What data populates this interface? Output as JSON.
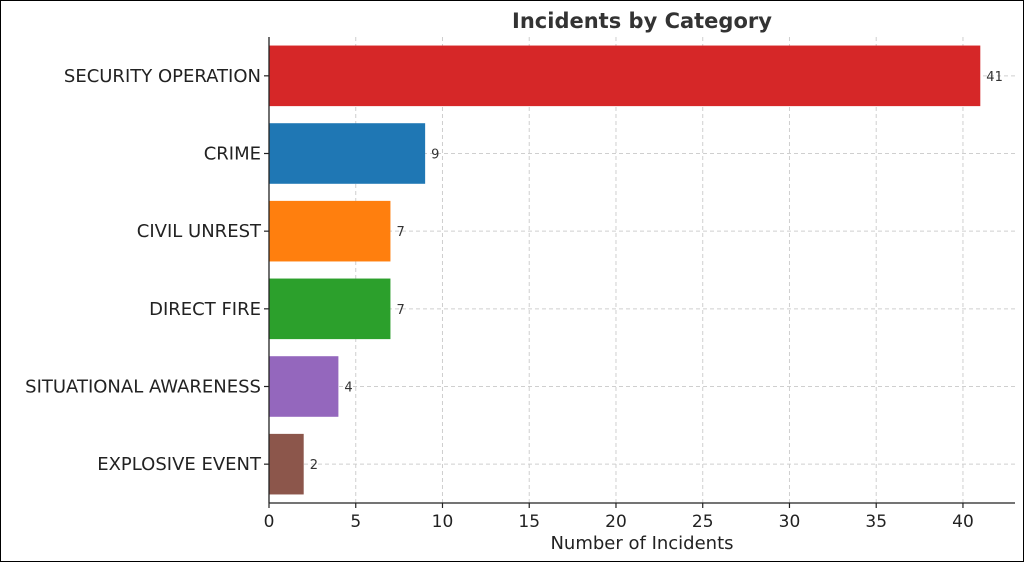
{
  "chart_data": {
    "type": "bar",
    "orientation": "horizontal",
    "title": "Incidents by Category",
    "xlabel": "Number of Incidents",
    "ylabel": "",
    "categories": [
      "SECURITY OPERATION",
      "CRIME",
      "CIVIL UNREST",
      "DIRECT FIRE",
      "SITUATIONAL AWARENESS",
      "EXPLOSIVE EVENT"
    ],
    "values": [
      41,
      9,
      7,
      7,
      4,
      2
    ],
    "colors": [
      "#d62728",
      "#1f77b4",
      "#ff7f0e",
      "#2ca02c",
      "#9467bd",
      "#8c564b"
    ],
    "xlim": [
      0,
      43
    ],
    "xticks": [
      0,
      5,
      10,
      15,
      20,
      25,
      30,
      35,
      40
    ],
    "grid": true,
    "data_labels": true,
    "legend": "none"
  }
}
